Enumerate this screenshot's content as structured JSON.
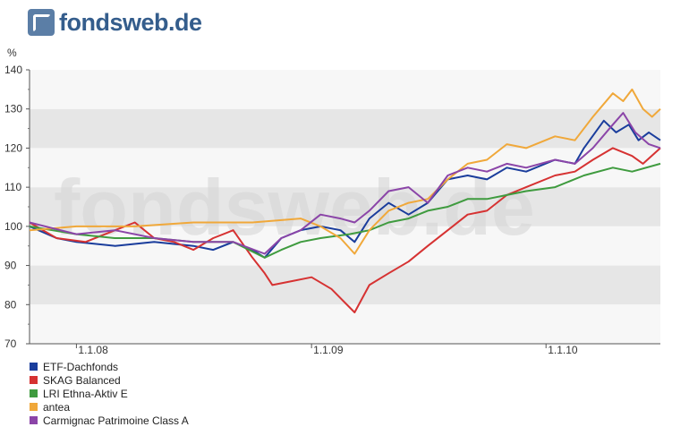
{
  "logo": {
    "text": "fondsweb.de"
  },
  "watermark": "fondsweb.de",
  "chart_data": {
    "type": "line",
    "ylabel": "%",
    "ylim": [
      70,
      140
    ],
    "yticks": [
      70,
      80,
      90,
      100,
      110,
      120,
      130,
      140
    ],
    "xlim": [
      "2007-10-20",
      "2010-06-28"
    ],
    "xticks": [
      {
        "date": "2008-01-01",
        "label": "1.1.08"
      },
      {
        "date": "2009-01-01",
        "label": "1.1.09"
      },
      {
        "date": "2010-01-01",
        "label": "1.1.10"
      }
    ],
    "grid_bands": true,
    "legend_position": "bottom-left",
    "series": [
      {
        "name": "ETF-Dachfonds",
        "color": "#1a3d9c",
        "points": [
          [
            "2007-10-20",
            100
          ],
          [
            "2007-12-01",
            97
          ],
          [
            "2008-01-01",
            96
          ],
          [
            "2008-03-01",
            95
          ],
          [
            "2008-05-01",
            96
          ],
          [
            "2008-07-01",
            95
          ],
          [
            "2008-08-01",
            94
          ],
          [
            "2008-09-01",
            96
          ],
          [
            "2008-10-01",
            94
          ],
          [
            "2008-10-20",
            92
          ],
          [
            "2008-11-15",
            97
          ],
          [
            "2008-12-15",
            99
          ],
          [
            "2009-01-15",
            100
          ],
          [
            "2009-02-15",
            99
          ],
          [
            "2009-03-09",
            96
          ],
          [
            "2009-04-01",
            102
          ],
          [
            "2009-05-01",
            106
          ],
          [
            "2009-06-01",
            103
          ],
          [
            "2009-07-01",
            106
          ],
          [
            "2009-08-01",
            112
          ],
          [
            "2009-09-01",
            113
          ],
          [
            "2009-10-01",
            112
          ],
          [
            "2009-11-01",
            115
          ],
          [
            "2009-12-01",
            114
          ],
          [
            "2010-01-15",
            117
          ],
          [
            "2010-02-15",
            116
          ],
          [
            "2010-03-01",
            120
          ],
          [
            "2010-04-01",
            127
          ],
          [
            "2010-04-20",
            124
          ],
          [
            "2010-05-10",
            126
          ],
          [
            "2010-05-25",
            122
          ],
          [
            "2010-06-10",
            124
          ],
          [
            "2010-06-28",
            122
          ]
        ]
      },
      {
        "name": "SKAG Balanced",
        "color": "#d63232",
        "points": [
          [
            "2007-10-20",
            101
          ],
          [
            "2007-12-01",
            97
          ],
          [
            "2008-01-15",
            96
          ],
          [
            "2008-03-01",
            99
          ],
          [
            "2008-04-01",
            101
          ],
          [
            "2008-05-01",
            97
          ],
          [
            "2008-06-01",
            96
          ],
          [
            "2008-07-01",
            94
          ],
          [
            "2008-08-01",
            97
          ],
          [
            "2008-09-01",
            99
          ],
          [
            "2008-10-01",
            92
          ],
          [
            "2008-10-20",
            88
          ],
          [
            "2008-11-01",
            85
          ],
          [
            "2008-12-01",
            86
          ],
          [
            "2009-01-01",
            87
          ],
          [
            "2009-02-01",
            84
          ],
          [
            "2009-03-09",
            78
          ],
          [
            "2009-04-01",
            85
          ],
          [
            "2009-05-01",
            88
          ],
          [
            "2009-06-01",
            91
          ],
          [
            "2009-07-01",
            95
          ],
          [
            "2009-08-01",
            99
          ],
          [
            "2009-09-01",
            103
          ],
          [
            "2009-10-01",
            104
          ],
          [
            "2009-11-01",
            108
          ],
          [
            "2009-12-01",
            110
          ],
          [
            "2010-01-15",
            113
          ],
          [
            "2010-02-15",
            114
          ],
          [
            "2010-03-15",
            117
          ],
          [
            "2010-04-15",
            120
          ],
          [
            "2010-05-15",
            118
          ],
          [
            "2010-06-01",
            116
          ],
          [
            "2010-06-28",
            120
          ]
        ]
      },
      {
        "name": "LRI Ethna-Aktiv E",
        "color": "#3f9b3f",
        "points": [
          [
            "2007-10-20",
            100
          ],
          [
            "2008-01-01",
            98
          ],
          [
            "2008-03-01",
            97
          ],
          [
            "2008-05-01",
            97
          ],
          [
            "2008-07-01",
            96
          ],
          [
            "2008-09-01",
            96
          ],
          [
            "2008-10-20",
            92
          ],
          [
            "2008-11-15",
            94
          ],
          [
            "2008-12-15",
            96
          ],
          [
            "2009-01-15",
            97
          ],
          [
            "2009-03-01",
            98
          ],
          [
            "2009-04-01",
            99
          ],
          [
            "2009-05-01",
            101
          ],
          [
            "2009-06-01",
            102
          ],
          [
            "2009-07-01",
            104
          ],
          [
            "2009-08-01",
            105
          ],
          [
            "2009-09-01",
            107
          ],
          [
            "2009-10-01",
            107
          ],
          [
            "2009-11-01",
            108
          ],
          [
            "2009-12-01",
            109
          ],
          [
            "2010-01-15",
            110
          ],
          [
            "2010-03-01",
            113
          ],
          [
            "2010-04-15",
            115
          ],
          [
            "2010-05-15",
            114
          ],
          [
            "2010-06-28",
            116
          ]
        ]
      },
      {
        "name": "antea",
        "color": "#f0a83a",
        "points": [
          [
            "2007-10-20",
            99
          ],
          [
            "2008-01-01",
            100
          ],
          [
            "2008-04-01",
            100
          ],
          [
            "2008-07-01",
            101
          ],
          [
            "2008-10-01",
            101
          ],
          [
            "2008-12-15",
            102
          ],
          [
            "2009-01-15",
            100
          ],
          [
            "2009-02-15",
            97
          ],
          [
            "2009-03-09",
            93
          ],
          [
            "2009-04-01",
            99
          ],
          [
            "2009-05-01",
            104
          ],
          [
            "2009-06-01",
            106
          ],
          [
            "2009-07-01",
            107
          ],
          [
            "2009-08-01",
            112
          ],
          [
            "2009-09-01",
            116
          ],
          [
            "2009-10-01",
            117
          ],
          [
            "2009-11-01",
            121
          ],
          [
            "2009-12-01",
            120
          ],
          [
            "2010-01-15",
            123
          ],
          [
            "2010-02-15",
            122
          ],
          [
            "2010-03-15",
            128
          ],
          [
            "2010-04-15",
            134
          ],
          [
            "2010-05-01",
            132
          ],
          [
            "2010-05-15",
            135
          ],
          [
            "2010-06-01",
            130
          ],
          [
            "2010-06-15",
            128
          ],
          [
            "2010-06-28",
            130
          ]
        ]
      },
      {
        "name": "Carmignac Patrimoine Class A",
        "color": "#8b45a8",
        "points": [
          [
            "2007-10-20",
            101
          ],
          [
            "2008-01-01",
            98
          ],
          [
            "2008-03-01",
            99
          ],
          [
            "2008-05-01",
            97
          ],
          [
            "2008-07-01",
            96
          ],
          [
            "2008-09-01",
            96
          ],
          [
            "2008-10-20",
            93
          ],
          [
            "2008-11-15",
            97
          ],
          [
            "2008-12-15",
            99
          ],
          [
            "2009-01-15",
            103
          ],
          [
            "2009-02-15",
            102
          ],
          [
            "2009-03-09",
            101
          ],
          [
            "2009-04-01",
            104
          ],
          [
            "2009-05-01",
            109
          ],
          [
            "2009-06-01",
            110
          ],
          [
            "2009-07-01",
            106
          ],
          [
            "2009-08-01",
            113
          ],
          [
            "2009-09-01",
            115
          ],
          [
            "2009-10-01",
            114
          ],
          [
            "2009-11-01",
            116
          ],
          [
            "2009-12-01",
            115
          ],
          [
            "2010-01-15",
            117
          ],
          [
            "2010-02-15",
            116
          ],
          [
            "2010-03-15",
            120
          ],
          [
            "2010-04-15",
            126
          ],
          [
            "2010-05-01",
            129
          ],
          [
            "2010-05-20",
            124
          ],
          [
            "2010-06-10",
            121
          ],
          [
            "2010-06-28",
            120
          ]
        ]
      }
    ]
  }
}
